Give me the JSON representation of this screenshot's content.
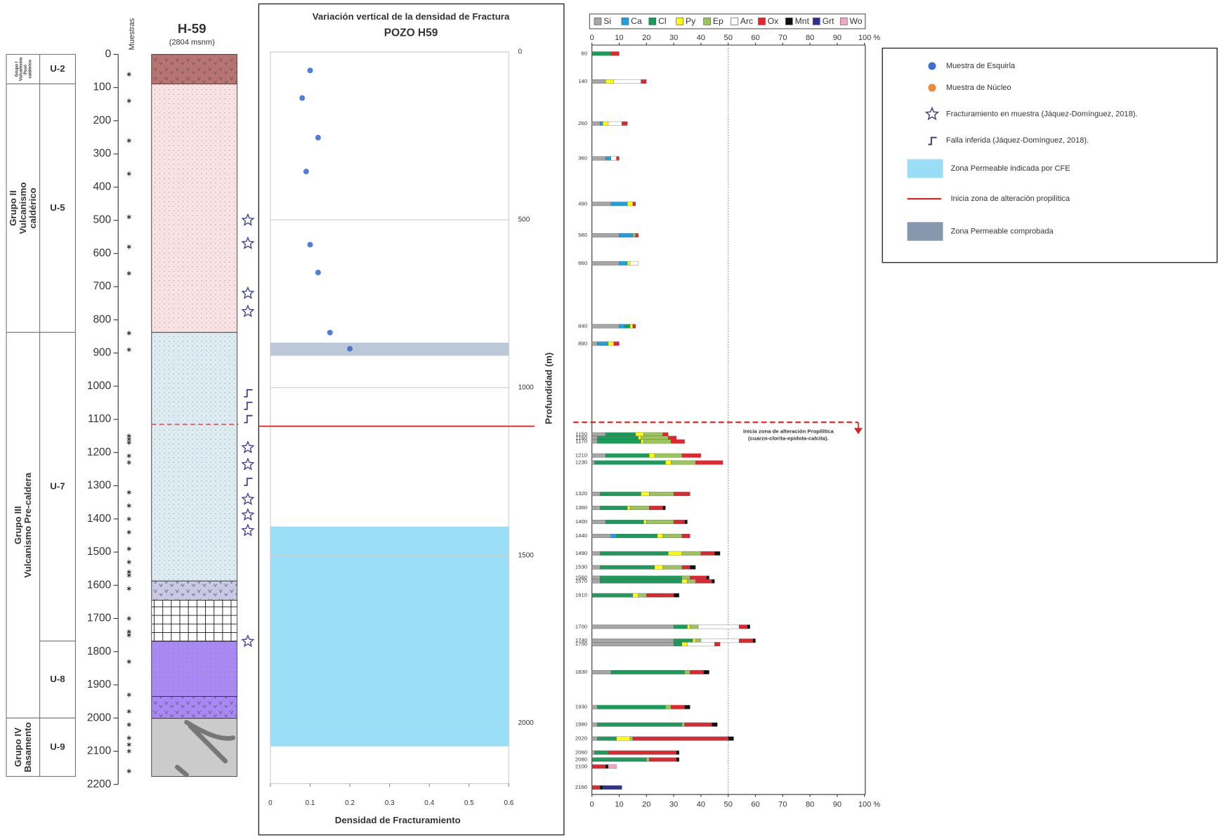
{
  "chart_data": [
    {
      "type": "strat",
      "title": "H-59",
      "subtitle": "(2804 msnm)",
      "samples_label": "Muestras",
      "ylim": [
        0,
        2200
      ],
      "yticks": [
        0,
        100,
        200,
        300,
        400,
        500,
        600,
        700,
        800,
        900,
        1000,
        1100,
        1200,
        1300,
        1400,
        1500,
        1600,
        1700,
        1800,
        1900,
        2000,
        2100,
        2200
      ],
      "groups": [
        {
          "lines": [
            "Grupo I",
            "Vulcanismo",
            "Post-",
            "caldérico"
          ],
          "top": 0,
          "bottom": 89
        },
        {
          "lines": [
            "Grupo II",
            "Vulcanismo",
            "caldérico"
          ],
          "top": 89,
          "bottom": 838
        },
        {
          "lines": [
            "Grupo III",
            "Vulcanismo Pre-caldera"
          ],
          "top": 838,
          "bottom": 2000
        },
        {
          "lines": [
            "Grupo IV",
            "Basamento"
          ],
          "top": 2000,
          "bottom": 2176
        }
      ],
      "units": [
        {
          "label": "U-2",
          "top": 0,
          "bottom": 89
        },
        {
          "label": "U-5",
          "top": 89,
          "bottom": 838
        },
        {
          "label": "U-7",
          "top": 838,
          "bottom": 1768
        },
        {
          "label": "U-8",
          "top": 1768,
          "bottom": 2000
        },
        {
          "label": "U-9",
          "top": 2000,
          "bottom": 2176
        }
      ],
      "layers": [
        {
          "top": 0,
          "bottom": 89,
          "color": "#b87470",
          "pattern": "v"
        },
        {
          "top": 89,
          "bottom": 838,
          "color": "#fbe3e3",
          "pattern": "dots"
        },
        {
          "top": 838,
          "bottom": 1587,
          "color": "#deedf3",
          "pattern": "dots"
        },
        {
          "top": 1587,
          "bottom": 1645,
          "color": "#c9c9e6",
          "pattern": "v"
        },
        {
          "top": 1645,
          "bottom": 1769,
          "color": "#ffffff",
          "pattern": "grid"
        },
        {
          "top": 1769,
          "bottom": 1935,
          "color": "#a987f5",
          "pattern": "dots"
        },
        {
          "top": 1935,
          "bottom": 2001,
          "color": "#a987f5",
          "pattern": "v"
        },
        {
          "top": 2001,
          "bottom": 2176,
          "color": "#cbcbcb",
          "pattern": "none"
        }
      ],
      "samples": [
        60,
        140,
        260,
        360,
        490,
        580,
        660,
        840,
        890,
        1150,
        1160,
        1170,
        1210,
        1230,
        1320,
        1360,
        1400,
        1440,
        1490,
        1530,
        1560,
        1570,
        1610,
        1700,
        1740,
        1750,
        1830,
        1930,
        1980,
        2020,
        2060,
        2080,
        2100,
        2160
      ],
      "fractures": [
        500,
        570,
        720,
        775,
        1185,
        1236,
        1341,
        1388,
        1435,
        1769
      ],
      "faults": [
        1020,
        1058,
        1098,
        1287
      ],
      "propylitic_depth": 1115
    },
    {
      "type": "scatter",
      "title": "Variación vertical de la densidad de Fractura",
      "subtitle": "POZO H59",
      "xlabel": "Densidad de Fracturamiento",
      "ylabel": "Profundidad (m)",
      "x": [
        0.1,
        0.08,
        0.12,
        0.09,
        0.1,
        0.12,
        0.15,
        0.2
      ],
      "y": [
        55,
        137,
        255,
        356,
        574,
        657,
        836,
        884
      ],
      "color": "#3b6fd6",
      "xlim": [
        0,
        0.6
      ],
      "xticks": [
        0,
        0.1,
        0.2,
        0.3,
        0.4,
        0.5,
        0.6
      ],
      "ylim": [
        0,
        2180
      ],
      "yticks": [
        0,
        500,
        1000,
        1500,
        2000
      ],
      "grid": true,
      "zones": [
        {
          "from": 866,
          "to": 905,
          "color": "#bcc8d8"
        },
        {
          "from": 1414,
          "to": 2069,
          "color": "#99def6"
        }
      ],
      "propylitic_depth": 1115
    },
    {
      "type": "stacked_barh",
      "depths": [
        60,
        140,
        260,
        360,
        490,
        580,
        660,
        840,
        890,
        1150,
        1160,
        1170,
        1210,
        1230,
        1320,
        1360,
        1400,
        1440,
        1490,
        1530,
        1560,
        1570,
        1610,
        1700,
        1740,
        1750,
        1830,
        1930,
        1980,
        2020,
        2060,
        2080,
        2100,
        2160
      ],
      "ylim": [
        0,
        2180
      ],
      "xlim": [
        0,
        100
      ],
      "xticks": [
        0,
        10,
        20,
        30,
        40,
        50,
        60,
        70,
        80,
        90,
        {
          "value": 100,
          "label": "100 %"
        }
      ],
      "refline": 50,
      "series": [
        {
          "name": "Si",
          "color": "#a6a6a6",
          "values": [
            0,
            5,
            3,
            5,
            7,
            10,
            10,
            10,
            2,
            5,
            2,
            2,
            5,
            1,
            3,
            3,
            5,
            7,
            3,
            3,
            3,
            3,
            0,
            30,
            30,
            30,
            7,
            2,
            2,
            2,
            1,
            0,
            0,
            0
          ]
        },
        {
          "name": "Ca",
          "color": "#1fa0e0",
          "values": [
            0,
            0,
            1,
            2,
            6,
            5,
            3,
            2,
            4,
            0,
            0,
            0,
            0,
            0,
            0,
            0,
            0,
            2,
            0,
            0,
            0,
            0,
            0,
            0,
            0,
            0,
            0,
            0,
            0,
            0,
            0,
            0,
            0,
            0
          ]
        },
        {
          "name": "Cl",
          "color": "#1b9c5a",
          "values": [
            7,
            0,
            0,
            0,
            0,
            0,
            0,
            2,
            0,
            11,
            15,
            16,
            16,
            26,
            15,
            10,
            14,
            15,
            25,
            20,
            30,
            30,
            15,
            5,
            7,
            3,
            27,
            25,
            31,
            7,
            5,
            20,
            0,
            0
          ]
        },
        {
          "name": "Py",
          "color": "#ffff00",
          "values": [
            0,
            3,
            2,
            0,
            2,
            0,
            1,
            1,
            2,
            3,
            1,
            1,
            2,
            2,
            3,
            1,
            1,
            2,
            5,
            3,
            0,
            2,
            2,
            1,
            1,
            2,
            0,
            0,
            0,
            5,
            0,
            0,
            0,
            0
          ]
        },
        {
          "name": "Ep",
          "color": "#9bc45a",
          "values": [
            0,
            0,
            0,
            0,
            0,
            1,
            0,
            0,
            0,
            7,
            10,
            10,
            10,
            9,
            9,
            7,
            10,
            7,
            7,
            7,
            3,
            3,
            3,
            3,
            2,
            0,
            2,
            2,
            1,
            1,
            0,
            1,
            0,
            0
          ]
        },
        {
          "name": "Arc",
          "color": "#ffffff",
          "values": [
            0,
            10,
            5,
            2,
            0,
            0,
            3,
            0,
            0,
            0,
            0,
            0,
            0,
            0,
            0,
            0,
            0,
            0,
            0,
            0,
            0,
            0,
            0,
            15,
            14,
            10,
            0,
            0,
            0,
            0,
            0,
            0,
            0,
            0
          ]
        },
        {
          "name": "Ox",
          "color": "#e0262e",
          "values": [
            3,
            2,
            2,
            1,
            1,
            1,
            0,
            1,
            2,
            2,
            3,
            5,
            7,
            10,
            6,
            5,
            4,
            3,
            5,
            3,
            6,
            6,
            10,
            3,
            5,
            2,
            5,
            5,
            10,
            35,
            25,
            10,
            5,
            3
          ]
        },
        {
          "name": "Mnt",
          "color": "#111111",
          "values": [
            0,
            0,
            0,
            0,
            0,
            0,
            0,
            0,
            0,
            0,
            0,
            0,
            0,
            0,
            0,
            1,
            1,
            0,
            2,
            2,
            1,
            1,
            2,
            1,
            1,
            0,
            2,
            2,
            2,
            2,
            1,
            1,
            1,
            1
          ]
        },
        {
          "name": "Grt",
          "color": "#2e3192",
          "values": [
            0,
            0,
            0,
            0,
            0,
            0,
            0,
            0,
            0,
            0,
            0,
            0,
            0,
            0,
            0,
            0,
            0,
            0,
            0,
            0,
            0,
            0,
            0,
            0,
            0,
            0,
            0,
            0,
            0,
            0,
            0,
            0,
            0,
            7
          ]
        },
        {
          "name": "Wo",
          "color": "#f4a6c8",
          "values": [
            0,
            0,
            0,
            0,
            0,
            0,
            0,
            0,
            0,
            0,
            0,
            0,
            0,
            0,
            0,
            0,
            0,
            0,
            0,
            0,
            0,
            0,
            0,
            0,
            0,
            0,
            0,
            0,
            0,
            0,
            0,
            0,
            3,
            0
          ]
        }
      ],
      "annotation": {
        "lines": [
          "Inicia zona de alteración Propilítica",
          "(cuarzo-clorita-epidota-calcita)."
        ],
        "depth": 1115,
        "color": "#e02020"
      }
    }
  ],
  "legend": [
    {
      "label": "Muestra de Esquirla",
      "symbol": "dot",
      "color": "#3b6fd6"
    },
    {
      "label": "Muestra de Núcleo",
      "symbol": "dot",
      "color": "#f0883a"
    },
    {
      "label": "Fracturamiento en muestra (Jáquez-Domínguez, 2018).",
      "symbol": "star",
      "color": "#3b3b8f"
    },
    {
      "label": "Falla inferida (Jáquez-Domínguez, 2018).",
      "symbol": "fault",
      "color": "#3b3b8f"
    },
    {
      "label": "Zona Permeable indicada por CFE",
      "symbol": "box",
      "color": "#99def6"
    },
    {
      "label": "Inicia zona de alteración propilítica",
      "symbol": "line",
      "color": "#e02020"
    },
    {
      "label": "Zona Permeable comprobada",
      "symbol": "box",
      "color": "#8797ae"
    }
  ]
}
